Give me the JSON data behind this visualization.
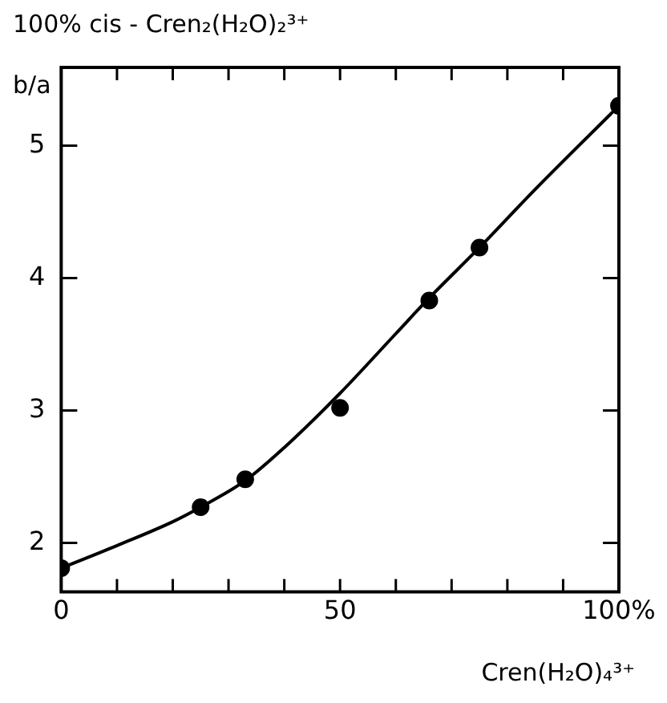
{
  "chart_data": {
    "type": "scatter",
    "title": "100% cis - Cren₂(H₂O)₂³⁺",
    "xlabel": "Cren(H₂O)₄³⁺",
    "ylabel": "b/a",
    "xlim": [
      0,
      100
    ],
    "ylim": [
      1.63,
      5.59
    ],
    "xticks": [
      0,
      {
        "value": 10,
        "label": null
      },
      {
        "value": 20,
        "label": null
      },
      {
        "value": 30,
        "label": null
      },
      {
        "value": 40,
        "label": null
      },
      50,
      {
        "value": 60,
        "label": null
      },
      {
        "value": 70,
        "label": null
      },
      {
        "value": 80,
        "label": null
      },
      {
        "value": 90,
        "label": null
      },
      {
        "value": 100,
        "label": "100%"
      }
    ],
    "yticks": [
      2,
      3,
      4,
      5
    ],
    "grid": false,
    "legend": false,
    "marker": "circle",
    "series": [
      {
        "color": "#000000",
        "x": [
          0,
          25,
          33,
          50,
          66,
          75,
          100
        ],
        "values": [
          1.81,
          2.27,
          2.48,
          3.02,
          3.83,
          4.23,
          5.3
        ]
      },
      {
        "type": "line",
        "color": "#000000",
        "marker": "none",
        "line_style": "solid",
        "x": [
          0,
          10,
          20,
          25,
          33,
          40,
          50,
          60,
          66,
          75,
          85,
          100
        ],
        "values": [
          1.81,
          1.98,
          2.16,
          2.27,
          2.47,
          2.72,
          3.13,
          3.58,
          3.85,
          4.23,
          4.67,
          5.3
        ]
      }
    ]
  }
}
